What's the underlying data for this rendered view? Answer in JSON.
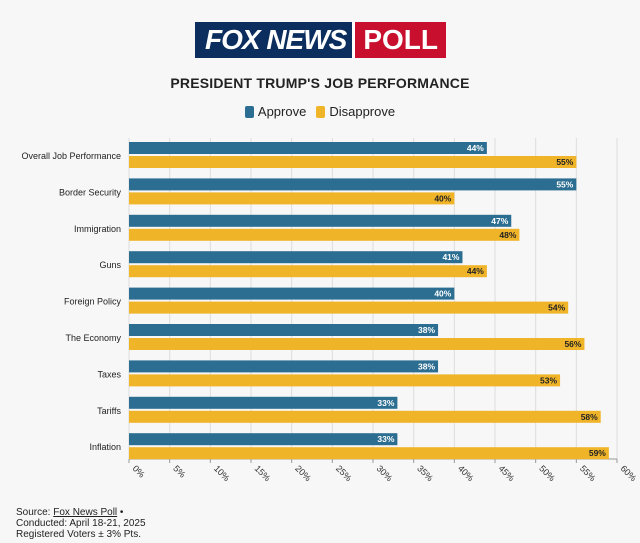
{
  "logo": {
    "left": "FOX NEWS",
    "right": "POLL"
  },
  "chart_data": {
    "type": "bar",
    "orientation": "horizontal",
    "title": "PRESIDENT TRUMP'S JOB PERFORMANCE",
    "categories": [
      "Overall Job Performance",
      "Border Security",
      "Immigration",
      "Guns",
      "Foreign Policy",
      "The Economy",
      "Taxes",
      "Tariffs",
      "Inflation"
    ],
    "series": [
      {
        "name": "Approve",
        "color": "#2c6e91",
        "values": [
          44,
          55,
          47,
          41,
          40,
          38,
          38,
          33,
          33
        ]
      },
      {
        "name": "Disapprove",
        "color": "#f0b429",
        "values": [
          55,
          40,
          48,
          44,
          54,
          56,
          53,
          58,
          59
        ]
      }
    ],
    "xlim": [
      0,
      60
    ],
    "xticks": [
      "0%",
      "5%",
      "10%",
      "15%",
      "20%",
      "25%",
      "30%",
      "35%",
      "40%",
      "45%",
      "50%",
      "55%",
      "60%"
    ],
    "value_suffix": "%",
    "grid": "vertical",
    "legend_position": "top"
  },
  "footer": {
    "source_prefix": "Source: ",
    "source_link": "Fox News Poll",
    "source_suffix": " •",
    "conducted": "Conducted: April 18-21, 2025",
    "voters": "Registered Voters ± 3% Pts."
  }
}
